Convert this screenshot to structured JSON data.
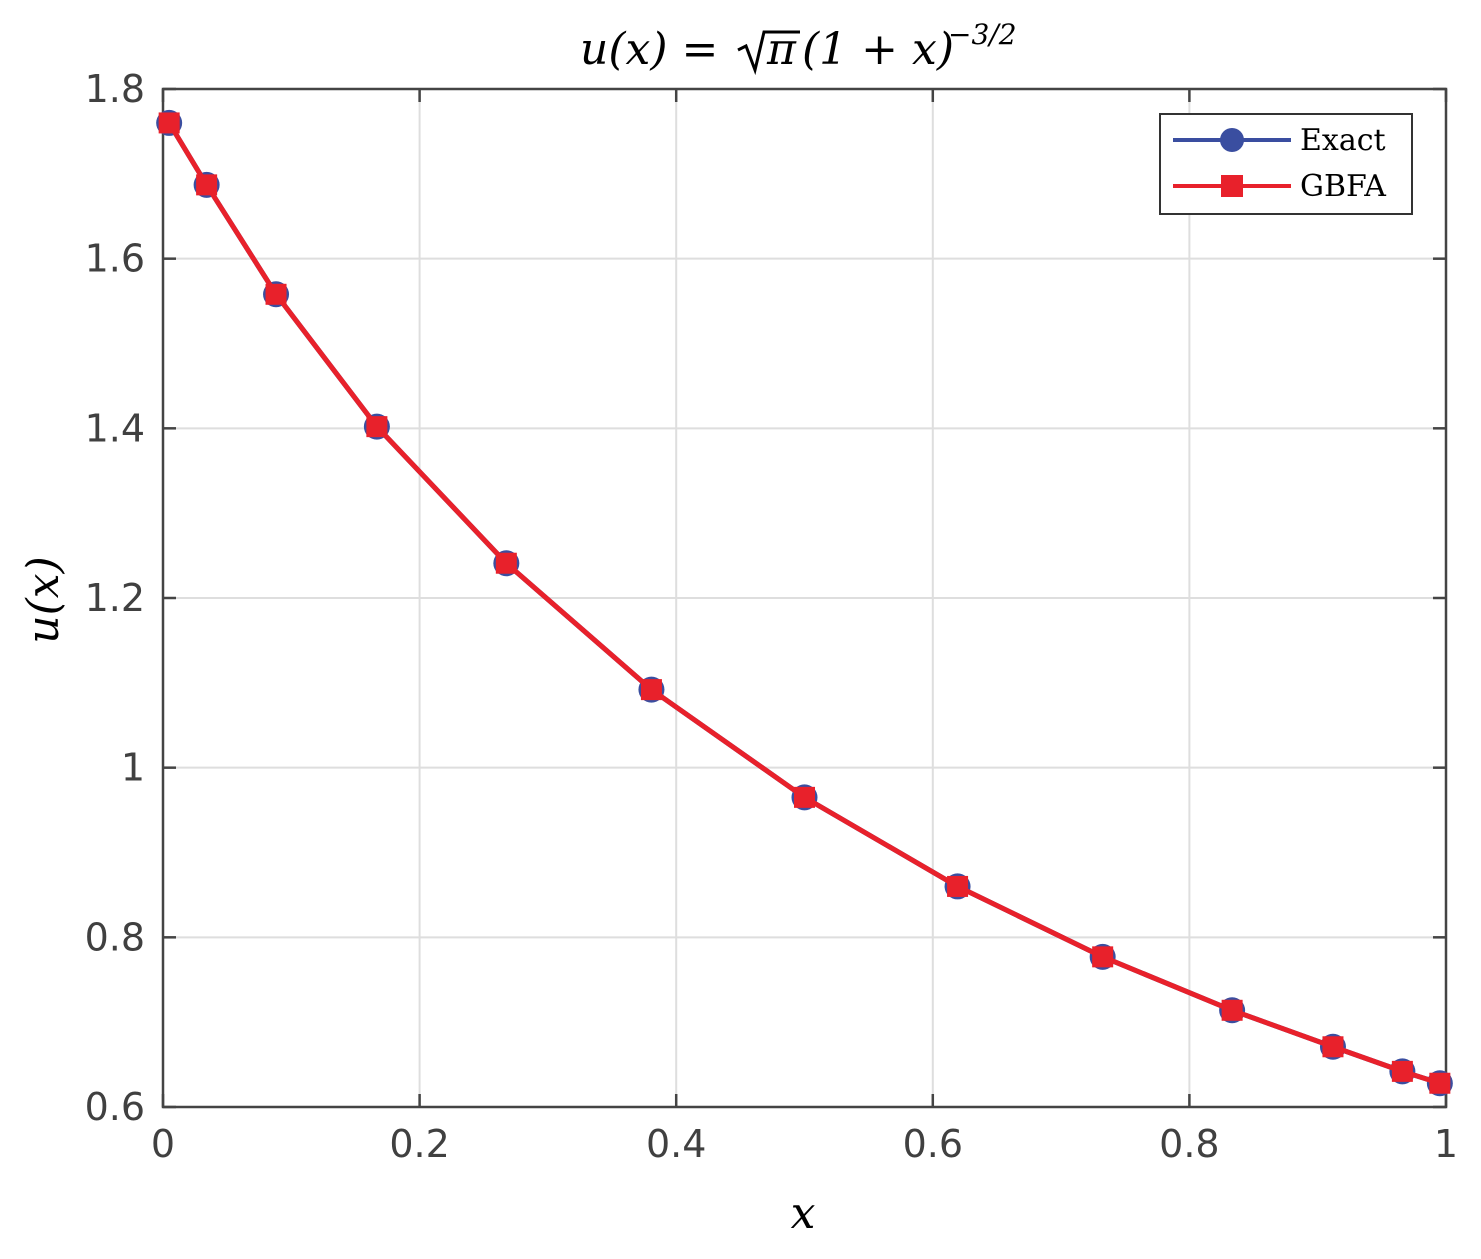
{
  "chart_data": {
    "type": "line",
    "title": {
      "lhs": "u(x) = ",
      "sqrt_arg": "π",
      "rhs": "(1 + x)",
      "exponent": "−3/2"
    },
    "xlabel": "x",
    "ylabel": "u(x)",
    "xlim": [
      0,
      1
    ],
    "ylim": [
      0.6,
      1.8
    ],
    "xticks": [
      0,
      0.2,
      0.4,
      0.6,
      0.8,
      1
    ],
    "xtick_labels": [
      "0",
      "0.2",
      "0.4",
      "0.6",
      "0.8",
      "1"
    ],
    "yticks": [
      0.6,
      0.8,
      1,
      1.2,
      1.4,
      1.6,
      1.8
    ],
    "ytick_labels": [
      "0.6",
      "0.8",
      "1",
      "1.2",
      "1.4",
      "1.6",
      "1.8"
    ],
    "grid": true,
    "legend_position": "top-right",
    "x": [
      0.0048,
      0.034,
      0.0881,
      0.1667,
      0.2676,
      0.3807,
      0.5,
      0.6193,
      0.7324,
      0.8333,
      0.9119,
      0.966,
      0.9952
    ],
    "series": [
      {
        "name": "Exact",
        "color": "#3a4ea0",
        "marker": "circle",
        "values": [
          1.76,
          1.687,
          1.558,
          1.402,
          1.241,
          1.092,
          0.965,
          0.86,
          0.777,
          0.714,
          0.671,
          0.642,
          0.628
        ]
      },
      {
        "name": "GBFA",
        "color": "#e8212b",
        "marker": "square",
        "values": [
          1.76,
          1.687,
          1.558,
          1.402,
          1.241,
          1.092,
          0.965,
          0.86,
          0.777,
          0.714,
          0.671,
          0.642,
          0.628
        ]
      }
    ]
  }
}
